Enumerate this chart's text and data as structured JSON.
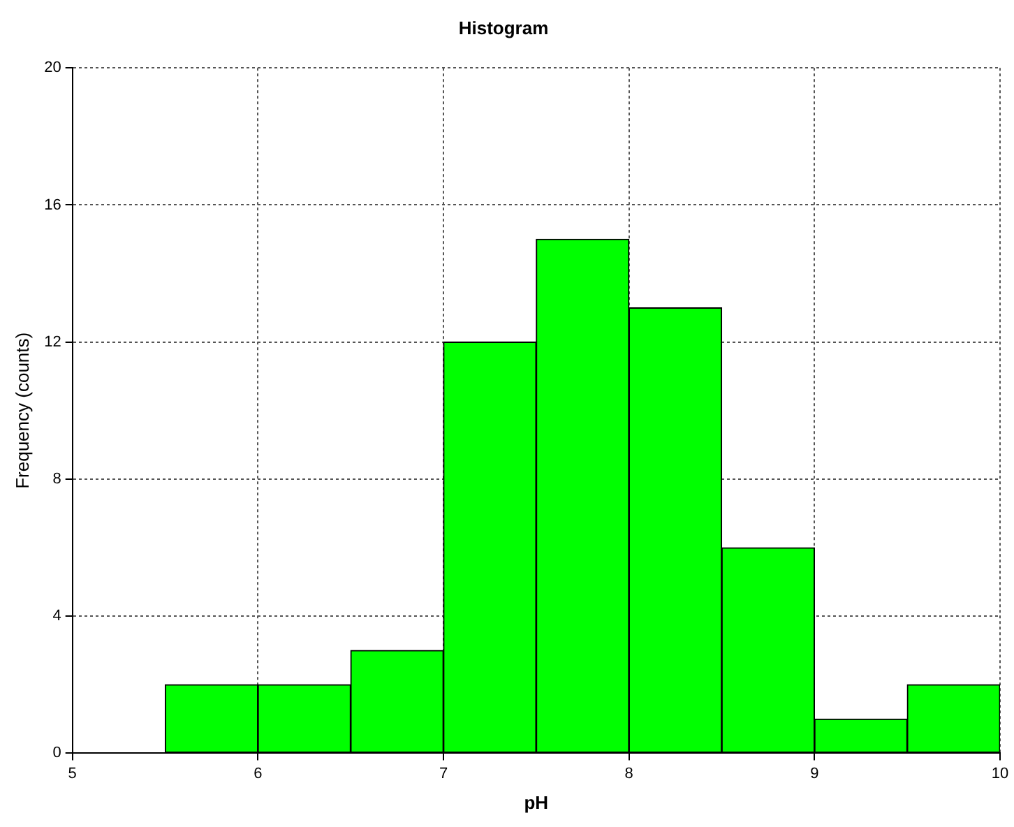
{
  "chart_data": {
    "type": "histogram",
    "title": "Histogram",
    "xlabel": "pH",
    "ylabel": "Frequency (counts)",
    "bins": [
      5.5,
      6,
      6.5,
      7,
      7.5,
      8,
      8.5,
      9,
      9.5,
      10
    ],
    "values": [
      2,
      2,
      3,
      12,
      15,
      13,
      6,
      1,
      2
    ],
    "color": "#00ff00",
    "xlim": [
      5,
      10
    ],
    "xticks": [
      5,
      6,
      7,
      8,
      9,
      10
    ],
    "ylim": [
      0,
      20
    ],
    "yticks": [
      0,
      4,
      8,
      12,
      16,
      20
    ],
    "grid": true
  }
}
